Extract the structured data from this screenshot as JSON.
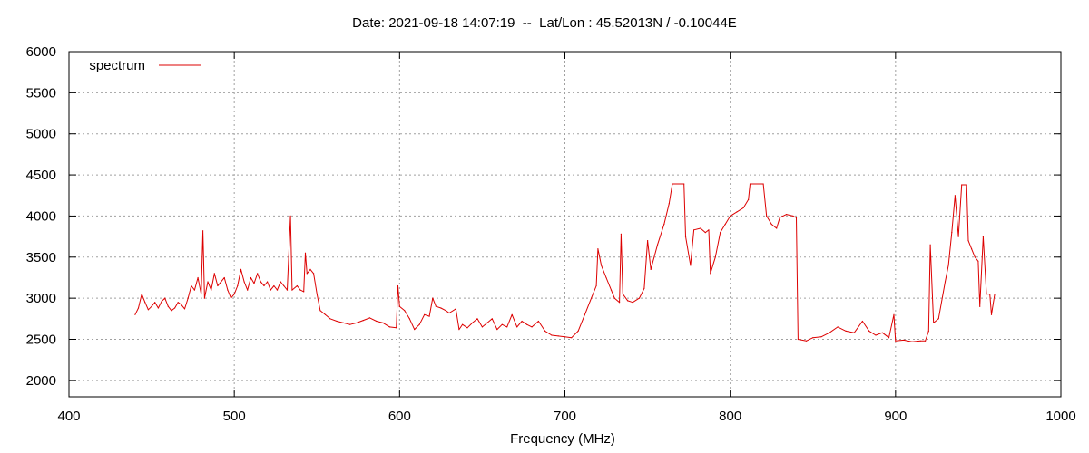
{
  "chart_data": {
    "type": "line",
    "title": "Date: 2021-09-18 14:07:19  --  Lat/Lon : 45.52013N / -0.10044E",
    "xlabel": "Frequency (MHz)",
    "ylabel": "",
    "xlim": [
      400,
      1000
    ],
    "ylim": [
      1800,
      6000
    ],
    "x_ticks": [
      400,
      500,
      600,
      700,
      800,
      900,
      1000
    ],
    "y_ticks": [
      2000,
      2500,
      3000,
      3500,
      4000,
      4500,
      5000,
      5500,
      6000
    ],
    "grid": true,
    "legend_position": "top-left",
    "series": [
      {
        "name": "spectrum",
        "color": "#dd0000",
        "points": [
          [
            440,
            2800
          ],
          [
            442,
            2880
          ],
          [
            444,
            3050
          ],
          [
            446,
            2950
          ],
          [
            448,
            2860
          ],
          [
            450,
            2900
          ],
          [
            452,
            2950
          ],
          [
            454,
            2880
          ],
          [
            456,
            2960
          ],
          [
            458,
            3000
          ],
          [
            460,
            2900
          ],
          [
            462,
            2850
          ],
          [
            464,
            2880
          ],
          [
            466,
            2950
          ],
          [
            468,
            2920
          ],
          [
            470,
            2870
          ],
          [
            472,
            3000
          ],
          [
            474,
            3150
          ],
          [
            476,
            3100
          ],
          [
            478,
            3250
          ],
          [
            480,
            3050
          ],
          [
            481,
            3820
          ],
          [
            482,
            3000
          ],
          [
            484,
            3200
          ],
          [
            486,
            3100
          ],
          [
            488,
            3300
          ],
          [
            490,
            3150
          ],
          [
            492,
            3200
          ],
          [
            494,
            3250
          ],
          [
            496,
            3100
          ],
          [
            498,
            3000
          ],
          [
            500,
            3050
          ],
          [
            502,
            3150
          ],
          [
            504,
            3350
          ],
          [
            506,
            3200
          ],
          [
            508,
            3100
          ],
          [
            510,
            3250
          ],
          [
            512,
            3180
          ],
          [
            514,
            3300
          ],
          [
            516,
            3200
          ],
          [
            518,
            3150
          ],
          [
            520,
            3200
          ],
          [
            522,
            3100
          ],
          [
            524,
            3150
          ],
          [
            526,
            3100
          ],
          [
            528,
            3200
          ],
          [
            530,
            3150
          ],
          [
            532,
            3100
          ],
          [
            534,
            4000
          ],
          [
            535,
            3100
          ],
          [
            538,
            3150
          ],
          [
            540,
            3100
          ],
          [
            542,
            3080
          ],
          [
            543,
            3550
          ],
          [
            544,
            3300
          ],
          [
            546,
            3350
          ],
          [
            548,
            3300
          ],
          [
            550,
            3050
          ],
          [
            552,
            2850
          ],
          [
            555,
            2800
          ],
          [
            558,
            2750
          ],
          [
            562,
            2720
          ],
          [
            566,
            2700
          ],
          [
            570,
            2680
          ],
          [
            574,
            2700
          ],
          [
            578,
            2730
          ],
          [
            582,
            2760
          ],
          [
            586,
            2720
          ],
          [
            590,
            2700
          ],
          [
            594,
            2650
          ],
          [
            598,
            2640
          ],
          [
            599,
            3150
          ],
          [
            600,
            2900
          ],
          [
            603,
            2850
          ],
          [
            606,
            2750
          ],
          [
            609,
            2620
          ],
          [
            612,
            2680
          ],
          [
            615,
            2800
          ],
          [
            618,
            2780
          ],
          [
            620,
            3000
          ],
          [
            622,
            2900
          ],
          [
            625,
            2880
          ],
          [
            628,
            2850
          ],
          [
            630,
            2820
          ],
          [
            634,
            2870
          ],
          [
            636,
            2620
          ],
          [
            638,
            2680
          ],
          [
            641,
            2640
          ],
          [
            644,
            2700
          ],
          [
            647,
            2750
          ],
          [
            650,
            2650
          ],
          [
            653,
            2700
          ],
          [
            656,
            2750
          ],
          [
            659,
            2620
          ],
          [
            662,
            2680
          ],
          [
            665,
            2650
          ],
          [
            668,
            2800
          ],
          [
            671,
            2650
          ],
          [
            674,
            2720
          ],
          [
            677,
            2680
          ],
          [
            680,
            2650
          ],
          [
            684,
            2720
          ],
          [
            688,
            2600
          ],
          [
            692,
            2550
          ],
          [
            696,
            2540
          ],
          [
            700,
            2530
          ],
          [
            704,
            2520
          ],
          [
            708,
            2600
          ],
          [
            712,
            2800
          ],
          [
            716,
            3000
          ],
          [
            719,
            3150
          ],
          [
            720,
            3600
          ],
          [
            722,
            3400
          ],
          [
            725,
            3250
          ],
          [
            728,
            3100
          ],
          [
            730,
            3000
          ],
          [
            733,
            2950
          ],
          [
            734,
            3780
          ],
          [
            735,
            3050
          ],
          [
            738,
            2970
          ],
          [
            741,
            2950
          ],
          [
            745,
            3000
          ],
          [
            748,
            3120
          ],
          [
            750,
            3700
          ],
          [
            752,
            3350
          ],
          [
            756,
            3650
          ],
          [
            760,
            3900
          ],
          [
            763,
            4150
          ],
          [
            765,
            4390
          ],
          [
            772,
            4390
          ],
          [
            773,
            3750
          ],
          [
            776,
            3400
          ],
          [
            778,
            3830
          ],
          [
            782,
            3850
          ],
          [
            785,
            3800
          ],
          [
            787,
            3830
          ],
          [
            788,
            3300
          ],
          [
            791,
            3500
          ],
          [
            794,
            3800
          ],
          [
            797,
            3900
          ],
          [
            800,
            4000
          ],
          [
            804,
            4050
          ],
          [
            808,
            4100
          ],
          [
            811,
            4200
          ],
          [
            812,
            4390
          ],
          [
            820,
            4390
          ],
          [
            822,
            4000
          ],
          [
            825,
            3900
          ],
          [
            828,
            3850
          ],
          [
            830,
            3980
          ],
          [
            834,
            4020
          ],
          [
            838,
            4000
          ],
          [
            840,
            3980
          ],
          [
            841,
            2500
          ],
          [
            846,
            2480
          ],
          [
            850,
            2520
          ],
          [
            855,
            2530
          ],
          [
            860,
            2580
          ],
          [
            865,
            2650
          ],
          [
            870,
            2600
          ],
          [
            875,
            2580
          ],
          [
            880,
            2720
          ],
          [
            884,
            2600
          ],
          [
            888,
            2550
          ],
          [
            892,
            2580
          ],
          [
            896,
            2520
          ],
          [
            899,
            2800
          ],
          [
            900,
            2480
          ],
          [
            905,
            2490
          ],
          [
            910,
            2470
          ],
          [
            915,
            2480
          ],
          [
            918,
            2480
          ],
          [
            920,
            2600
          ],
          [
            921,
            3650
          ],
          [
            923,
            2700
          ],
          [
            926,
            2750
          ],
          [
            930,
            3200
          ],
          [
            932,
            3400
          ],
          [
            934,
            3800
          ],
          [
            936,
            4250
          ],
          [
            938,
            3750
          ],
          [
            940,
            4380
          ],
          [
            943,
            4380
          ],
          [
            944,
            3700
          ],
          [
            946,
            3600
          ],
          [
            948,
            3500
          ],
          [
            950,
            3450
          ],
          [
            951,
            2900
          ],
          [
            953,
            3750
          ],
          [
            955,
            3050
          ],
          [
            957,
            3050
          ],
          [
            958,
            2800
          ],
          [
            960,
            3050
          ]
        ]
      }
    ]
  }
}
